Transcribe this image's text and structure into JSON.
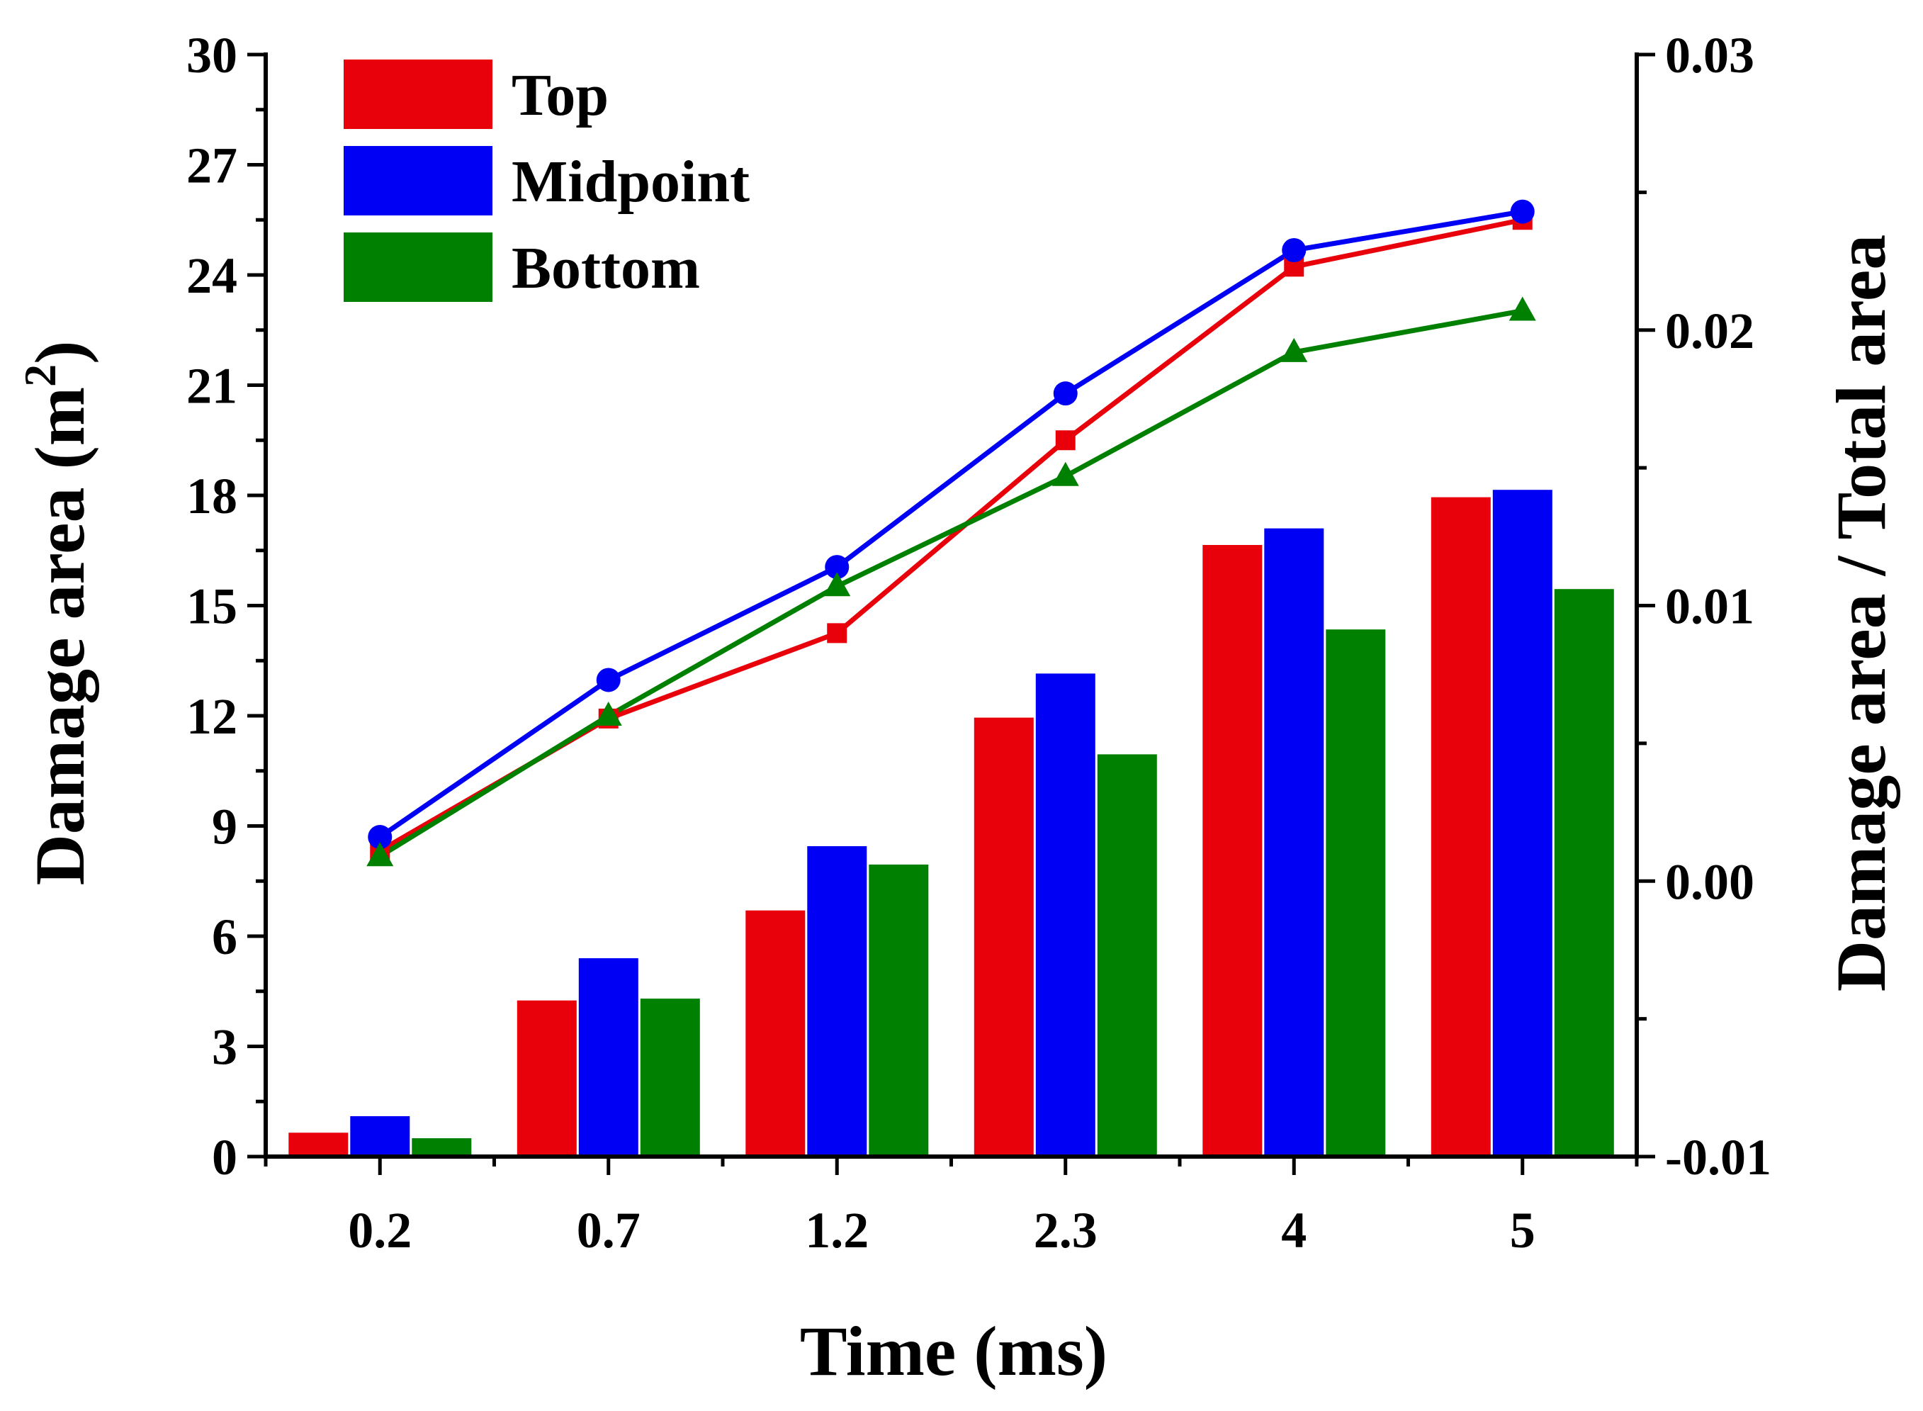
{
  "chart_data": {
    "type": "bar",
    "title": "",
    "xlabel": "Time (ms)",
    "ylabel": "Damage area (m",
    "ylabel_superscript": "2",
    "ylabel_close": ")",
    "y2label": "Damage area / Total area",
    "categories": [
      "0.2",
      "0.7",
      "1.2",
      "2.3",
      "4",
      "5"
    ],
    "ylim": [
      0,
      30
    ],
    "yticks": [
      "0",
      "3",
      "6",
      "9",
      "12",
      "15",
      "18",
      "21",
      "24",
      "27",
      "30"
    ],
    "y2lim": [
      -0.01,
      0.03
    ],
    "y2ticks": [
      "-0.01",
      "0.00",
      "0.01",
      "0.02",
      "0.03"
    ],
    "legend_position": "top-left",
    "bar_series": [
      {
        "name": "Top",
        "color": "#e8000b",
        "values": [
          0.65,
          4.25,
          6.7,
          11.95,
          16.65,
          17.95
        ]
      },
      {
        "name": "Midpoint",
        "color": "#0000f5",
        "values": [
          1.1,
          5.4,
          8.45,
          13.15,
          17.1,
          18.15
        ]
      },
      {
        "name": "Bottom",
        "color": "#008000",
        "values": [
          0.5,
          4.3,
          7.95,
          10.95,
          14.35,
          15.45
        ]
      }
    ],
    "line_series": [
      {
        "name": "Top",
        "color": "#e8000b",
        "marker": "square",
        "axis": "right",
        "values": [
          0.0011,
          0.0059,
          0.009,
          0.016,
          0.0223,
          0.024
        ]
      },
      {
        "name": "Midpoint",
        "color": "#0000f5",
        "marker": "circle",
        "axis": "right",
        "values": [
          0.0016,
          0.0073,
          0.0114,
          0.0177,
          0.0229,
          0.0243
        ]
      },
      {
        "name": "Bottom",
        "color": "#008000",
        "marker": "triangle",
        "axis": "right",
        "values": [
          0.0009,
          0.006,
          0.0107,
          0.0147,
          0.0192,
          0.0207
        ]
      }
    ]
  }
}
